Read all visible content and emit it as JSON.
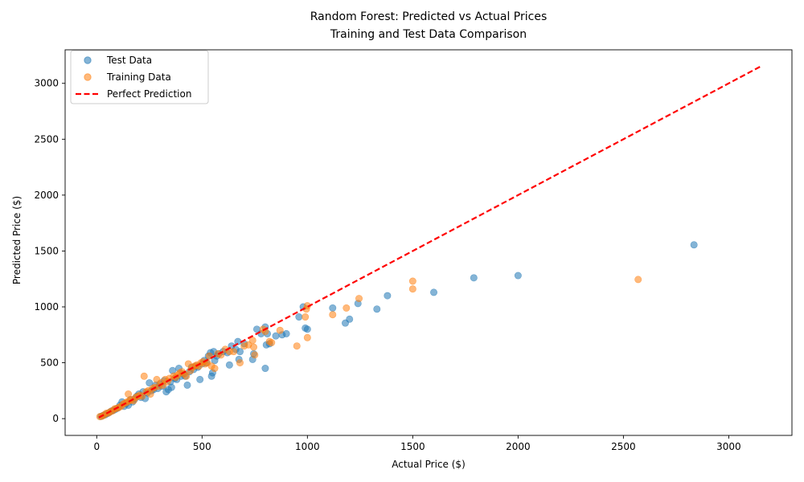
{
  "chart_data": {
    "type": "scatter",
    "title": "Random Forest: Predicted vs Actual Prices",
    "subtitle": "Training and Test Data Comparison",
    "xlabel": "Actual Price ($)",
    "ylabel": "Predicted Price ($)",
    "xlim": [
      -150,
      3300
    ],
    "ylim": [
      -150,
      3300
    ],
    "xticks": [
      0,
      500,
      1000,
      1500,
      2000,
      2500,
      3000
    ],
    "yticks": [
      0,
      500,
      1000,
      1500,
      2000,
      2500,
      3000
    ],
    "grid": false,
    "legend_position": "top-left",
    "series": [
      {
        "name": "Test Data",
        "color": "#1f77b4",
        "points": [
          [
            20,
            20
          ],
          [
            30,
            28
          ],
          [
            40,
            35
          ],
          [
            50,
            45
          ],
          [
            60,
            55
          ],
          [
            70,
            68
          ],
          [
            80,
            75
          ],
          [
            90,
            85
          ],
          [
            100,
            95
          ],
          [
            110,
            120
          ],
          [
            120,
            150
          ],
          [
            130,
            110
          ],
          [
            140,
            135
          ],
          [
            150,
            120
          ],
          [
            160,
            170
          ],
          [
            170,
            150
          ],
          [
            180,
            175
          ],
          [
            190,
            200
          ],
          [
            200,
            220
          ],
          [
            210,
            190
          ],
          [
            220,
            240
          ],
          [
            230,
            180
          ],
          [
            240,
            230
          ],
          [
            250,
            320
          ],
          [
            260,
            250
          ],
          [
            270,
            260
          ],
          [
            280,
            300
          ],
          [
            290,
            270
          ],
          [
            300,
            310
          ],
          [
            310,
            290
          ],
          [
            320,
            340
          ],
          [
            330,
            240
          ],
          [
            340,
            260
          ],
          [
            350,
            330
          ],
          [
            355,
            280
          ],
          [
            360,
            430
          ],
          [
            370,
            360
          ],
          [
            380,
            350
          ],
          [
            390,
            450
          ],
          [
            400,
            380
          ],
          [
            410,
            400
          ],
          [
            420,
            380
          ],
          [
            430,
            300
          ],
          [
            440,
            420
          ],
          [
            450,
            460
          ],
          [
            460,
            440
          ],
          [
            470,
            470
          ],
          [
            480,
            460
          ],
          [
            490,
            350
          ],
          [
            500,
            490
          ],
          [
            510,
            520
          ],
          [
            520,
            500
          ],
          [
            530,
            560
          ],
          [
            540,
            590
          ],
          [
            545,
            380
          ],
          [
            550,
            410
          ],
          [
            555,
            600
          ],
          [
            560,
            520
          ],
          [
            570,
            560
          ],
          [
            580,
            580
          ],
          [
            600,
            600
          ],
          [
            620,
            590
          ],
          [
            630,
            480
          ],
          [
            640,
            650
          ],
          [
            660,
            620
          ],
          [
            670,
            690
          ],
          [
            675,
            530
          ],
          [
            680,
            600
          ],
          [
            700,
            670
          ],
          [
            740,
            530
          ],
          [
            745,
            580
          ],
          [
            760,
            800
          ],
          [
            780,
            760
          ],
          [
            800,
            820
          ],
          [
            800,
            450
          ],
          [
            805,
            660
          ],
          [
            810,
            760
          ],
          [
            820,
            670
          ],
          [
            850,
            740
          ],
          [
            880,
            750
          ],
          [
            900,
            760
          ],
          [
            960,
            910
          ],
          [
            980,
            1000
          ],
          [
            990,
            810
          ],
          [
            1000,
            800
          ],
          [
            1120,
            990
          ],
          [
            1180,
            855
          ],
          [
            1200,
            890
          ],
          [
            1240,
            1030
          ],
          [
            1330,
            980
          ],
          [
            1380,
            1100
          ],
          [
            1600,
            1130
          ],
          [
            1790,
            1260
          ],
          [
            2000,
            1280
          ],
          [
            2835,
            1555
          ]
        ]
      },
      {
        "name": "Training Data",
        "color": "#ff7f0e",
        "points": [
          [
            15,
            18
          ],
          [
            25,
            22
          ],
          [
            35,
            32
          ],
          [
            45,
            48
          ],
          [
            55,
            50
          ],
          [
            65,
            62
          ],
          [
            75,
            70
          ],
          [
            85,
            88
          ],
          [
            95,
            92
          ],
          [
            105,
            100
          ],
          [
            115,
            110
          ],
          [
            125,
            130
          ],
          [
            135,
            140
          ],
          [
            145,
            150
          ],
          [
            150,
            220
          ],
          [
            155,
            160
          ],
          [
            165,
            170
          ],
          [
            175,
            160
          ],
          [
            185,
            190
          ],
          [
            195,
            200
          ],
          [
            205,
            210
          ],
          [
            215,
            200
          ],
          [
            225,
            380
          ],
          [
            235,
            240
          ],
          [
            245,
            250
          ],
          [
            255,
            220
          ],
          [
            265,
            270
          ],
          [
            275,
            280
          ],
          [
            285,
            350
          ],
          [
            295,
            290
          ],
          [
            305,
            320
          ],
          [
            315,
            300
          ],
          [
            325,
            350
          ],
          [
            335,
            330
          ],
          [
            345,
            360
          ],
          [
            365,
            380
          ],
          [
            375,
            370
          ],
          [
            385,
            390
          ],
          [
            395,
            410
          ],
          [
            405,
            420
          ],
          [
            415,
            400
          ],
          [
            425,
            380
          ],
          [
            435,
            490
          ],
          [
            445,
            430
          ],
          [
            455,
            460
          ],
          [
            465,
            470
          ],
          [
            475,
            480
          ],
          [
            485,
            470
          ],
          [
            495,
            500
          ],
          [
            505,
            510
          ],
          [
            515,
            490
          ],
          [
            525,
            500
          ],
          [
            535,
            560
          ],
          [
            545,
            470
          ],
          [
            560,
            450
          ],
          [
            575,
            580
          ],
          [
            590,
            570
          ],
          [
            610,
            620
          ],
          [
            630,
            600
          ],
          [
            650,
            600
          ],
          [
            680,
            500
          ],
          [
            700,
            650
          ],
          [
            720,
            660
          ],
          [
            740,
            700
          ],
          [
            745,
            640
          ],
          [
            750,
            570
          ],
          [
            790,
            800
          ],
          [
            800,
            780
          ],
          [
            820,
            690
          ],
          [
            830,
            680
          ],
          [
            870,
            790
          ],
          [
            950,
            650
          ],
          [
            990,
            910
          ],
          [
            995,
            980
          ],
          [
            1000,
            1010
          ],
          [
            1000,
            725
          ],
          [
            1120,
            930
          ],
          [
            1185,
            990
          ],
          [
            1245,
            1075
          ],
          [
            1500,
            1230
          ],
          [
            1500,
            1160
          ],
          [
            2570,
            1245
          ]
        ]
      }
    ],
    "reference_line": {
      "name": "Perfect Prediction",
      "color": "#ff0000",
      "from": [
        10,
        10
      ],
      "to": [
        3150,
        3150
      ]
    }
  }
}
